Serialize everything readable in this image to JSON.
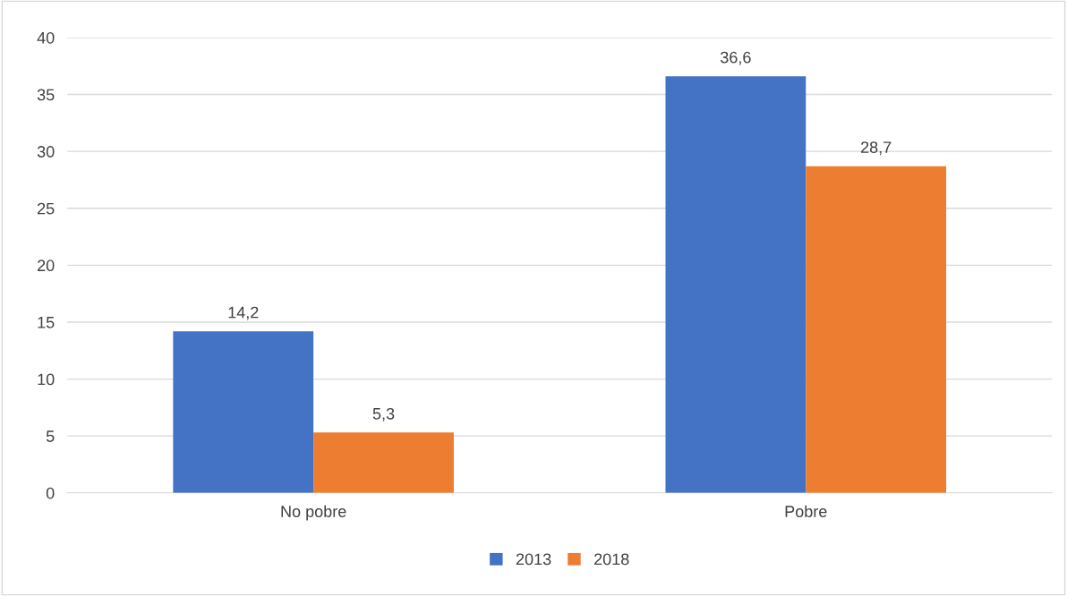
{
  "chart_data": {
    "type": "bar",
    "categories": [
      "No pobre",
      "Pobre"
    ],
    "series": [
      {
        "name": "2013",
        "color": "#4472c4",
        "values": [
          14.2,
          36.6
        ],
        "value_labels": [
          "14,2",
          "36,6"
        ]
      },
      {
        "name": "2018",
        "color": "#ed7d31",
        "values": [
          5.3,
          28.7
        ],
        "value_labels": [
          "5,3",
          "28,7"
        ]
      }
    ],
    "ylim": [
      0,
      40
    ],
    "yticks": [
      0,
      5,
      10,
      15,
      20,
      25,
      30,
      35,
      40
    ],
    "grid": "y",
    "legend": "bottom"
  }
}
